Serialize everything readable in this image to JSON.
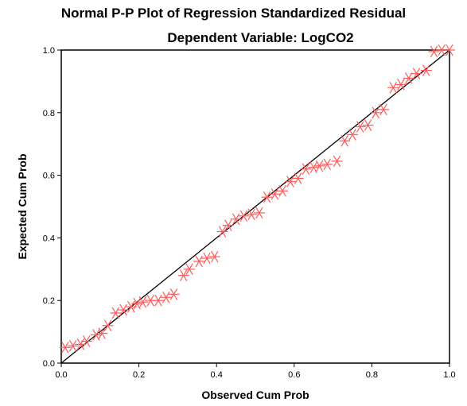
{
  "chart_data": {
    "type": "scatter",
    "title": "Normal P-P Plot of Regression Standardized Residual",
    "subtitle": "Dependent Variable: LogCO2",
    "xlabel": "Observed Cum Prob",
    "ylabel": "Expected Cum Prob",
    "xlim": [
      0.0,
      1.0
    ],
    "ylim": [
      0.0,
      1.0
    ],
    "x_ticks": [
      "0.0",
      "0.2",
      "0.4",
      "0.6",
      "0.8",
      "1.0"
    ],
    "y_ticks": [
      "0.0",
      "0.2",
      "0.4",
      "0.6",
      "0.8",
      "1.0"
    ],
    "grid": false,
    "reference_line": {
      "from": [
        0.0,
        0.0
      ],
      "to": [
        1.0,
        1.0
      ]
    },
    "marker": "star",
    "colors": {
      "marker": "#ff5a5a",
      "reference_line": "#000000",
      "axis": "#000000",
      "background": "#ffffff"
    },
    "points": [
      [
        0.01,
        0.05
      ],
      [
        0.03,
        0.055
      ],
      [
        0.05,
        0.06
      ],
      [
        0.065,
        0.07
      ],
      [
        0.09,
        0.09
      ],
      [
        0.105,
        0.095
      ],
      [
        0.12,
        0.12
      ],
      [
        0.14,
        0.16
      ],
      [
        0.16,
        0.17
      ],
      [
        0.18,
        0.18
      ],
      [
        0.195,
        0.19
      ],
      [
        0.21,
        0.195
      ],
      [
        0.23,
        0.2
      ],
      [
        0.25,
        0.2
      ],
      [
        0.27,
        0.21
      ],
      [
        0.29,
        0.22
      ],
      [
        0.315,
        0.28
      ],
      [
        0.33,
        0.3
      ],
      [
        0.355,
        0.325
      ],
      [
        0.375,
        0.335
      ],
      [
        0.395,
        0.34
      ],
      [
        0.415,
        0.42
      ],
      [
        0.43,
        0.44
      ],
      [
        0.45,
        0.46
      ],
      [
        0.47,
        0.47
      ],
      [
        0.49,
        0.475
      ],
      [
        0.51,
        0.48
      ],
      [
        0.53,
        0.53
      ],
      [
        0.55,
        0.54
      ],
      [
        0.57,
        0.55
      ],
      [
        0.59,
        0.58
      ],
      [
        0.61,
        0.59
      ],
      [
        0.63,
        0.62
      ],
      [
        0.65,
        0.625
      ],
      [
        0.665,
        0.63
      ],
      [
        0.685,
        0.635
      ],
      [
        0.71,
        0.645
      ],
      [
        0.73,
        0.71
      ],
      [
        0.75,
        0.73
      ],
      [
        0.77,
        0.755
      ],
      [
        0.79,
        0.76
      ],
      [
        0.81,
        0.8
      ],
      [
        0.83,
        0.81
      ],
      [
        0.855,
        0.88
      ],
      [
        0.875,
        0.89
      ],
      [
        0.895,
        0.91
      ],
      [
        0.915,
        0.925
      ],
      [
        0.94,
        0.935
      ],
      [
        0.96,
        0.995
      ],
      [
        0.98,
        1.0
      ],
      [
        1.0,
        1.0
      ]
    ]
  }
}
